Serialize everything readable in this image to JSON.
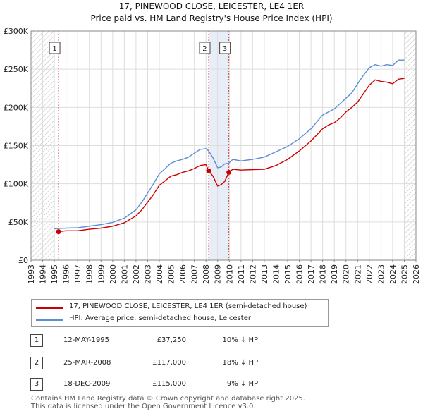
{
  "title_line1": "17, PINEWOOD CLOSE, LEICESTER, LE4 1ER",
  "title_line2": "Price paid vs. HM Land Registry's House Price Index (HPI)",
  "colors": {
    "property": "#cc0000",
    "hpi": "#5b8fd4",
    "marker_border": "#cc0000",
    "hatch": "#bbbbbb",
    "shade": "#e8eef8"
  },
  "chart_data": {
    "type": "line",
    "xlabel": "",
    "ylabel": "",
    "xlim": [
      1993,
      2026
    ],
    "ylim": [
      0,
      300000
    ],
    "y_ticks": [
      0,
      50000,
      100000,
      150000,
      200000,
      250000,
      300000
    ],
    "y_tick_labels": [
      "£0",
      "£50K",
      "£100K",
      "£150K",
      "£200K",
      "£250K",
      "£300K"
    ],
    "x_ticks": [
      1993,
      1994,
      1995,
      1996,
      1997,
      1998,
      1999,
      2000,
      2001,
      2002,
      2003,
      2004,
      2005,
      2006,
      2007,
      2008,
      2009,
      2010,
      2011,
      2012,
      2013,
      2014,
      2015,
      2016,
      2017,
      2018,
      2019,
      2020,
      2021,
      2022,
      2023,
      2024,
      2025,
      2026
    ],
    "x_tick_labels": [
      "1993",
      "1994",
      "1995",
      "1996",
      "1997",
      "1998",
      "1999",
      "2000",
      "2001",
      "2002",
      "2003",
      "2004",
      "2005",
      "2006",
      "2007",
      "2008",
      "2009",
      "2010",
      "2011",
      "2012",
      "2013",
      "2014",
      "2015",
      "2016",
      "2017",
      "2018",
      "2019",
      "2020",
      "2021",
      "2022",
      "2023",
      "2024",
      "2025",
      "2026"
    ],
    "grid": true,
    "hatched_ranges": [
      [
        1993,
        1995.0
      ],
      [
        2025.1,
        2026
      ]
    ],
    "shaded_ranges": [
      [
        2008.23,
        2009.96
      ]
    ],
    "series": [
      {
        "name": "17, PINEWOOD CLOSE, LEICESTER, LE4 1ER (semi-detached house)",
        "color": "#cc0000",
        "x": [
          1995.36,
          1996,
          1997,
          1998,
          1999,
          2000,
          2001,
          2002,
          2002.5,
          2003,
          2003.5,
          2004,
          2004.5,
          2005,
          2005.5,
          2006,
          2006.5,
          2007,
          2007.5,
          2008.0,
          2008.23,
          2008.6,
          2009.0,
          2009.3,
          2009.6,
          2009.96,
          2010.3,
          2011,
          2012,
          2013,
          2014,
          2015,
          2016,
          2017,
          2018,
          2018.5,
          2019,
          2019.5,
          2020,
          2020.5,
          2021,
          2021.5,
          2022,
          2022.5,
          2023,
          2023.5,
          2024,
          2024.5,
          2025.0
        ],
        "y": [
          37250,
          38500,
          38500,
          40500,
          42000,
          44500,
          49000,
          58000,
          66000,
          76000,
          86000,
          98000,
          104000,
          110000,
          112000,
          115000,
          117000,
          120000,
          124000,
          125000,
          117000,
          110000,
          97000,
          99000,
          103000,
          115000,
          119000,
          118000,
          118500,
          119000,
          124000,
          132000,
          143000,
          156000,
          172000,
          177000,
          180000,
          186000,
          194000,
          200000,
          207000,
          218000,
          229000,
          236000,
          234000,
          233000,
          231000,
          237000,
          238000
        ]
      },
      {
        "name": "HPI: Average price, semi-detached house, Leicester",
        "color": "#5b8fd4",
        "x": [
          1995.0,
          1995.36,
          1996,
          1997,
          1998,
          1999,
          2000,
          2001,
          2002,
          2002.5,
          2003,
          2003.5,
          2004,
          2004.5,
          2005,
          2005.5,
          2006,
          2006.5,
          2007,
          2007.5,
          2008.0,
          2008.23,
          2008.6,
          2009.0,
          2009.3,
          2009.6,
          2009.96,
          2010.3,
          2011,
          2012,
          2013,
          2014,
          2015,
          2016,
          2017,
          2018,
          2018.5,
          2019,
          2019.5,
          2020,
          2020.5,
          2021,
          2021.5,
          2022,
          2022.5,
          2023,
          2023.5,
          2024,
          2024.5,
          2025.0
        ],
        "y": [
          41000,
          41500,
          42000,
          42500,
          44500,
          46500,
          49500,
          55000,
          66000,
          76000,
          88000,
          100000,
          113000,
          120000,
          127000,
          130000,
          132000,
          135000,
          140000,
          145000,
          146000,
          143000,
          134000,
          121000,
          122000,
          126000,
          127000,
          132000,
          130000,
          132000,
          135000,
          142000,
          149000,
          159000,
          172000,
          190000,
          194000,
          198000,
          205000,
          212000,
          219000,
          231000,
          242000,
          252000,
          256000,
          254000,
          256000,
          255000,
          262000,
          262000
        ]
      }
    ],
    "sales": [
      {
        "id": "1",
        "x": 1995.36,
        "y": 37250
      },
      {
        "id": "2",
        "x": 2008.23,
        "y": 117000
      },
      {
        "id": "3",
        "x": 2009.96,
        "y": 115000
      }
    ]
  },
  "legend": [
    {
      "label": "17, PINEWOOD CLOSE, LEICESTER, LE4 1ER (semi-detached house)",
      "color": "#cc0000"
    },
    {
      "label": "HPI: Average price, semi-detached house, Leicester",
      "color": "#5b8fd4"
    }
  ],
  "sales_table": [
    {
      "num": "1",
      "date": "12-MAY-1995",
      "price": "£37,250",
      "hpi": "10% ↓ HPI"
    },
    {
      "num": "2",
      "date": "25-MAR-2008",
      "price": "£117,000",
      "hpi": "18% ↓ HPI"
    },
    {
      "num": "3",
      "date": "18-DEC-2009",
      "price": "£115,000",
      "hpi": "9% ↓ HPI"
    }
  ],
  "footer_line1": "Contains HM Land Registry data © Crown copyright and database right 2025.",
  "footer_line2": "This data is licensed under the Open Government Licence v3.0."
}
